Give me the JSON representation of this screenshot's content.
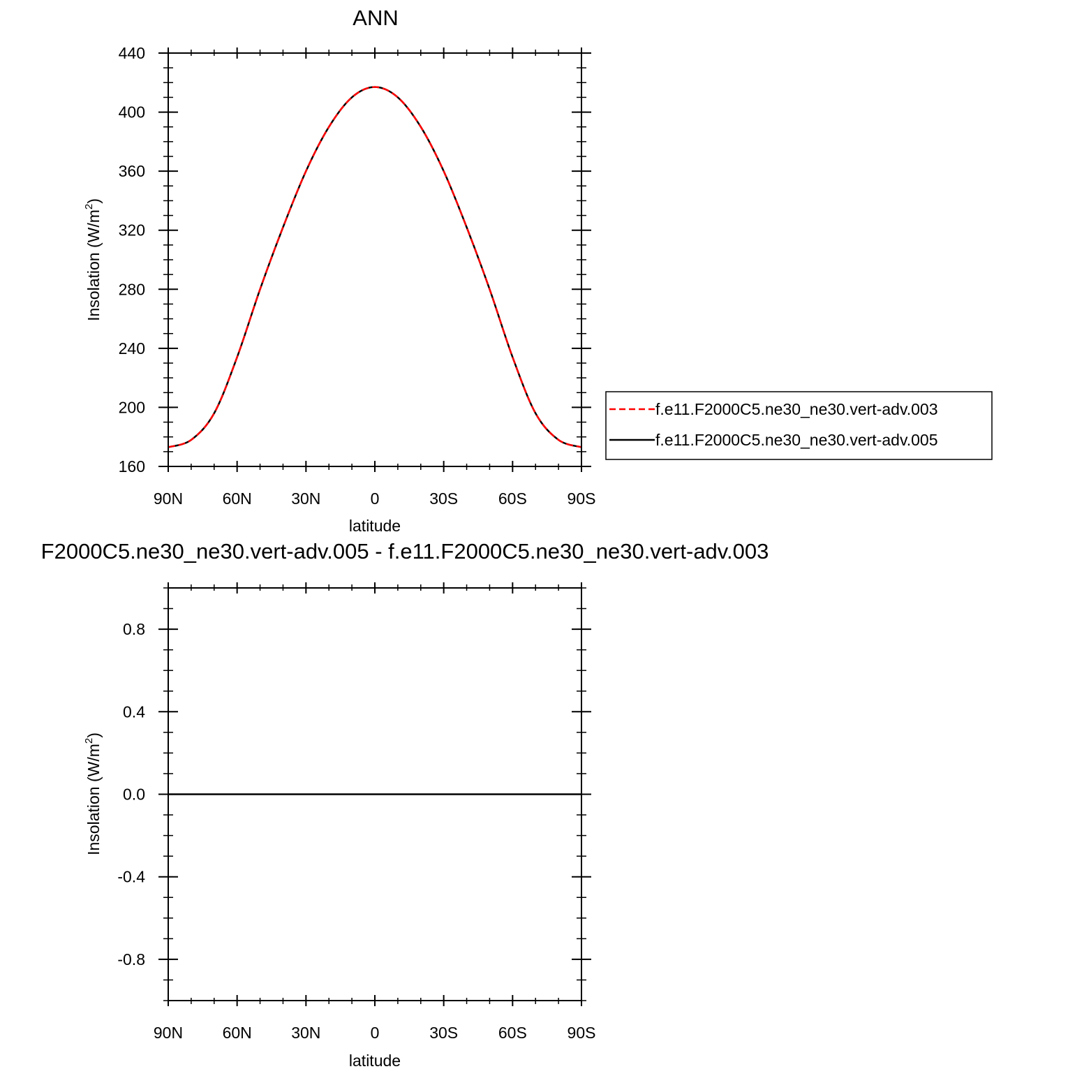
{
  "chart_data": [
    {
      "type": "line",
      "title": "ANN",
      "xlabel": "latitude",
      "ylabel": "Insolation (W/m",
      "ylabel_sup": "2",
      "ylabel_end": ")",
      "x_ticks": [
        "90N",
        "60N",
        "30N",
        "0",
        "30S",
        "60S",
        "90S"
      ],
      "y_ticks": [
        "440",
        "400",
        "360",
        "320",
        "280",
        "240",
        "200",
        "160"
      ],
      "xlim": [
        90,
        -90
      ],
      "ylim": [
        160,
        440
      ],
      "legend": "right",
      "x": [
        90,
        80,
        70,
        60,
        50,
        40,
        30,
        20,
        10,
        0,
        -10,
        -20,
        -30,
        -40,
        -50,
        -60,
        -70,
        -80,
        -90
      ],
      "series": [
        {
          "name": "f.e11.F2000C5.ne30_ne30.vert-adv.003",
          "color": "#ff0000",
          "dash": "dashed",
          "values": [
            173,
            178,
            196,
            234,
            280,
            322,
            360,
            390,
            410,
            417,
            410,
            390,
            360,
            322,
            280,
            234,
            196,
            178,
            173
          ]
        },
        {
          "name": "f.e11.F2000C5.ne30_ne30.vert-adv.005",
          "color": "#000000",
          "dash": "solid",
          "values": [
            173,
            178,
            196,
            234,
            280,
            322,
            360,
            390,
            410,
            417,
            410,
            390,
            360,
            322,
            280,
            234,
            196,
            178,
            173
          ]
        }
      ]
    },
    {
      "type": "line",
      "title": "F2000C5.ne30_ne30.vert-adv.005 - f.e11.F2000C5.ne30_ne30.vert-adv.003",
      "xlabel": "latitude",
      "ylabel": "Insolation (W/m",
      "ylabel_sup": "2",
      "ylabel_end": ")",
      "x_ticks": [
        "90N",
        "60N",
        "30N",
        "0",
        "30S",
        "60S",
        "90S"
      ],
      "y_ticks": [
        "0.8",
        "0.4",
        "0.0",
        "-0.4",
        "-0.8"
      ],
      "xlim": [
        90,
        -90
      ],
      "ylim": [
        -1,
        1
      ],
      "x": [
        90,
        -90
      ],
      "series": [
        {
          "color": "#000000",
          "dash": "solid",
          "values": [
            0,
            0
          ]
        }
      ]
    }
  ]
}
